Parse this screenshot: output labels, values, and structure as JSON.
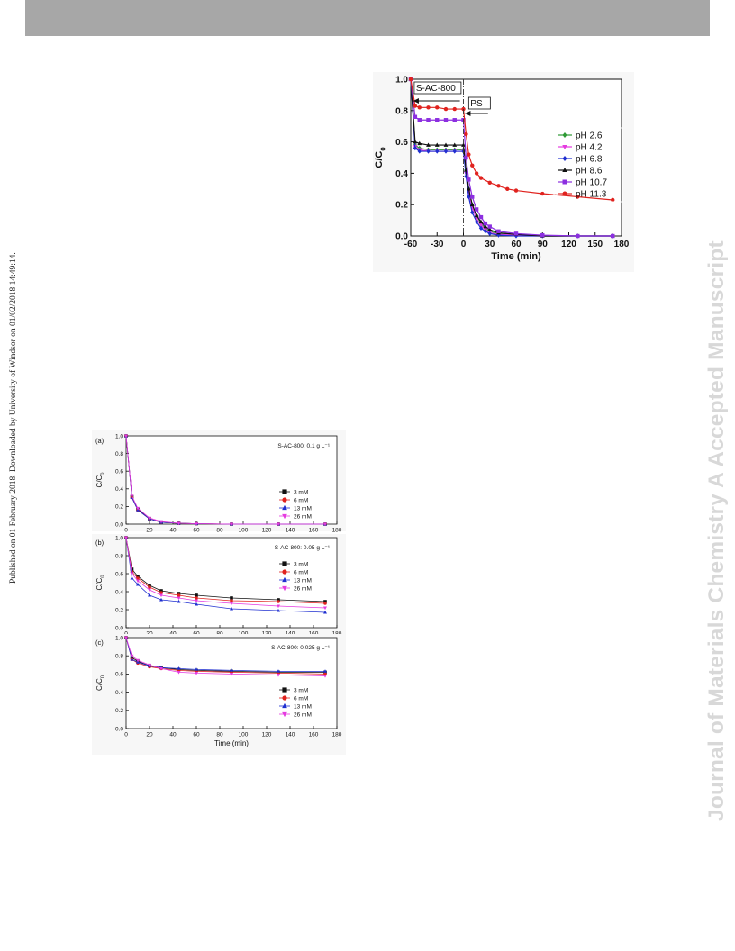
{
  "page": {
    "side_left": "Published on 01 February 2018. Downloaded by University of Windsor on 01/02/2018 14:49:14.",
    "side_right": "Journal of Materials Chemistry A Accepted Manuscript",
    "header_bar_color": "#a7a7a7"
  },
  "chart_data": [
    {
      "type": "line",
      "title": "",
      "xlabel": "Time (min)",
      "ylabel": "C/C0",
      "xlim": [
        -60,
        180
      ],
      "ylim": [
        0.0,
        1.0
      ],
      "xticks": [
        -60,
        -30,
        0,
        30,
        60,
        90,
        120,
        150,
        180
      ],
      "yticks": [
        0.0,
        0.2,
        0.4,
        0.6,
        0.8,
        1.0
      ],
      "annotations": [
        "S-AC-800",
        "PS"
      ],
      "legend_position": "right",
      "series": [
        {
          "name": "pH 2.6",
          "color": "#2e9a35",
          "marker": "diamond",
          "x": [
            -60,
            -55,
            -50,
            -40,
            -30,
            -20,
            -10,
            0,
            3,
            6,
            10,
            15,
            20,
            25,
            30,
            40,
            60,
            90,
            130,
            170
          ],
          "y": [
            1.0,
            0.58,
            0.56,
            0.55,
            0.55,
            0.55,
            0.55,
            0.55,
            0.42,
            0.3,
            0.2,
            0.13,
            0.08,
            0.05,
            0.03,
            0.015,
            0.005,
            0.0,
            0.0,
            0.0
          ]
        },
        {
          "name": "pH 4.2",
          "color": "#e53be0",
          "marker": "triangle-down",
          "x": [
            -60,
            -55,
            -50,
            -40,
            -30,
            -20,
            -10,
            0,
            3,
            6,
            10,
            15,
            20,
            25,
            30,
            40,
            60,
            90,
            130,
            170
          ],
          "y": [
            1.0,
            0.57,
            0.55,
            0.54,
            0.54,
            0.54,
            0.54,
            0.54,
            0.4,
            0.28,
            0.18,
            0.11,
            0.07,
            0.04,
            0.02,
            0.01,
            0.005,
            0.0,
            0.0,
            0.0
          ]
        },
        {
          "name": "pH 6.8",
          "color": "#1f2fd0",
          "marker": "diamond",
          "x": [
            -60,
            -55,
            -50,
            -40,
            -30,
            -20,
            -10,
            0,
            3,
            6,
            10,
            15,
            20,
            25,
            30,
            40,
            60,
            90,
            130,
            170
          ],
          "y": [
            1.0,
            0.56,
            0.54,
            0.54,
            0.54,
            0.54,
            0.54,
            0.54,
            0.38,
            0.25,
            0.15,
            0.09,
            0.05,
            0.03,
            0.015,
            0.005,
            0.0,
            0.0,
            0.0,
            0.0
          ]
        },
        {
          "name": "pH 8.6",
          "color": "#111111",
          "marker": "triangle-up",
          "x": [
            -60,
            -55,
            -50,
            -40,
            -30,
            -20,
            -10,
            0,
            3,
            6,
            10,
            15,
            20,
            25,
            30,
            40,
            60,
            90,
            130,
            170
          ],
          "y": [
            1.0,
            0.6,
            0.59,
            0.58,
            0.58,
            0.58,
            0.58,
            0.58,
            0.42,
            0.3,
            0.2,
            0.13,
            0.09,
            0.06,
            0.04,
            0.02,
            0.01,
            0.0,
            0.0,
            0.0
          ]
        },
        {
          "name": "pH 10.7",
          "color": "#8c2fe0",
          "marker": "square",
          "x": [
            -60,
            -55,
            -50,
            -40,
            -30,
            -20,
            -10,
            0,
            3,
            6,
            10,
            15,
            20,
            25,
            30,
            40,
            60,
            90,
            130,
            170
          ],
          "y": [
            1.0,
            0.76,
            0.74,
            0.74,
            0.74,
            0.74,
            0.74,
            0.74,
            0.5,
            0.36,
            0.25,
            0.17,
            0.12,
            0.08,
            0.06,
            0.03,
            0.015,
            0.005,
            0.0,
            0.0
          ]
        },
        {
          "name": "pH 11.3",
          "color": "#e0221e",
          "marker": "circle",
          "x": [
            -60,
            -55,
            -50,
            -40,
            -30,
            -20,
            -10,
            0,
            3,
            6,
            10,
            15,
            20,
            30,
            40,
            50,
            60,
            90,
            130,
            170
          ],
          "y": [
            1.0,
            0.83,
            0.82,
            0.82,
            0.82,
            0.81,
            0.81,
            0.81,
            0.65,
            0.52,
            0.45,
            0.4,
            0.37,
            0.34,
            0.32,
            0.3,
            0.29,
            0.27,
            0.25,
            0.23
          ]
        }
      ]
    },
    {
      "type": "line",
      "panel": "(a)",
      "title": "S-AC-800: 0.1 g L⁻¹",
      "xlabel": "",
      "ylabel": "C/C0",
      "xlim": [
        0,
        180
      ],
      "ylim": [
        0.0,
        1.0
      ],
      "xticks": [
        0,
        20,
        40,
        60,
        80,
        100,
        120,
        140,
        160,
        180
      ],
      "yticks": [
        0.0,
        0.2,
        0.4,
        0.6,
        0.8,
        1.0
      ],
      "legend_position": "right",
      "x": [
        0,
        5,
        10,
        20,
        30,
        45,
        60,
        90,
        130,
        170
      ],
      "series": [
        {
          "name": "3 mM",
          "color": "#111111",
          "marker": "square",
          "values": [
            1.0,
            0.31,
            0.17,
            0.06,
            0.02,
            0.01,
            0.005,
            0.0,
            0.0,
            0.0
          ]
        },
        {
          "name": "6 mM",
          "color": "#e0221e",
          "marker": "circle",
          "values": [
            1.0,
            0.3,
            0.16,
            0.06,
            0.02,
            0.01,
            0.005,
            0.0,
            0.0,
            0.0
          ]
        },
        {
          "name": "13 mM",
          "color": "#1f2fd0",
          "marker": "triangle-up",
          "values": [
            1.0,
            0.3,
            0.16,
            0.06,
            0.02,
            0.01,
            0.005,
            0.0,
            0.0,
            0.0
          ]
        },
        {
          "name": "26 mM",
          "color": "#e53be0",
          "marker": "triangle-down",
          "values": [
            1.0,
            0.32,
            0.18,
            0.07,
            0.03,
            0.01,
            0.005,
            0.0,
            0.0,
            0.0
          ]
        }
      ]
    },
    {
      "type": "line",
      "panel": "(b)",
      "title": "S-AC-800: 0.05 g L⁻¹",
      "xlabel": "",
      "ylabel": "C/C0",
      "xlim": [
        0,
        180
      ],
      "ylim": [
        0.0,
        1.0
      ],
      "xticks": [
        0,
        20,
        40,
        60,
        80,
        100,
        120,
        140,
        160,
        180
      ],
      "yticks": [
        0.0,
        0.2,
        0.4,
        0.6,
        0.8,
        1.0
      ],
      "legend_position": "right",
      "x": [
        0,
        5,
        10,
        20,
        30,
        45,
        60,
        90,
        130,
        170
      ],
      "series": [
        {
          "name": "3 mM",
          "color": "#111111",
          "marker": "square",
          "values": [
            1.0,
            0.65,
            0.57,
            0.47,
            0.41,
            0.38,
            0.36,
            0.33,
            0.31,
            0.29
          ]
        },
        {
          "name": "6 mM",
          "color": "#e0221e",
          "marker": "circle",
          "values": [
            1.0,
            0.62,
            0.55,
            0.45,
            0.39,
            0.36,
            0.33,
            0.3,
            0.29,
            0.27
          ]
        },
        {
          "name": "13 mM",
          "color": "#1f2fd0",
          "marker": "triangle-up",
          "values": [
            1.0,
            0.55,
            0.48,
            0.36,
            0.31,
            0.29,
            0.26,
            0.21,
            0.19,
            0.17
          ]
        },
        {
          "name": "26 mM",
          "color": "#e53be0",
          "marker": "triangle-down",
          "values": [
            1.0,
            0.6,
            0.52,
            0.42,
            0.36,
            0.33,
            0.3,
            0.27,
            0.24,
            0.22
          ]
        }
      ]
    },
    {
      "type": "line",
      "panel": "(c)",
      "title": "S-AC-800: 0.025 g L⁻¹",
      "xlabel": "Time (min)",
      "ylabel": "C/C0",
      "xlim": [
        0,
        180
      ],
      "ylim": [
        0.0,
        1.0
      ],
      "xticks": [
        0,
        20,
        40,
        60,
        80,
        100,
        120,
        140,
        160,
        180
      ],
      "yticks": [
        0.0,
        0.2,
        0.4,
        0.6,
        0.8,
        1.0
      ],
      "legend_position": "right",
      "x": [
        0,
        5,
        10,
        20,
        30,
        45,
        60,
        90,
        130,
        170
      ],
      "series": [
        {
          "name": "3 mM",
          "color": "#111111",
          "marker": "square",
          "values": [
            1.0,
            0.78,
            0.74,
            0.69,
            0.67,
            0.65,
            0.64,
            0.63,
            0.62,
            0.62
          ]
        },
        {
          "name": "6 mM",
          "color": "#e0221e",
          "marker": "circle",
          "values": [
            1.0,
            0.76,
            0.72,
            0.68,
            0.66,
            0.64,
            0.63,
            0.62,
            0.61,
            0.6
          ]
        },
        {
          "name": "13 mM",
          "color": "#1f2fd0",
          "marker": "triangle-up",
          "values": [
            1.0,
            0.76,
            0.73,
            0.69,
            0.67,
            0.66,
            0.65,
            0.64,
            0.63,
            0.63
          ]
        },
        {
          "name": "26 mM",
          "color": "#e53be0",
          "marker": "triangle-down",
          "values": [
            1.0,
            0.8,
            0.75,
            0.7,
            0.66,
            0.62,
            0.61,
            0.6,
            0.59,
            0.58
          ]
        }
      ]
    }
  ]
}
